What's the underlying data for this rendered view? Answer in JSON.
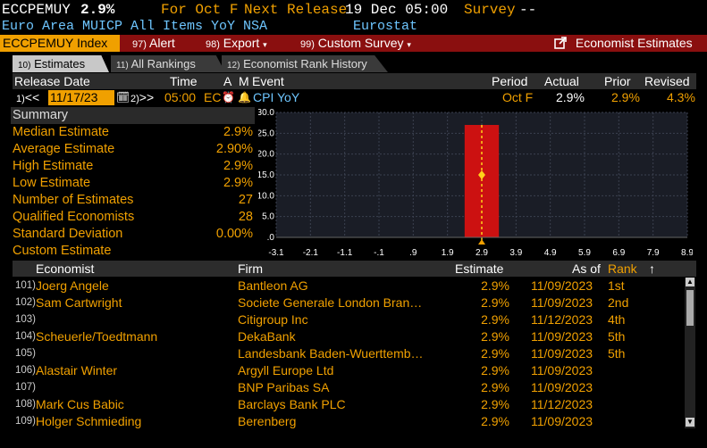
{
  "header": {
    "ticker": "ECCPEMUY",
    "value": "2.9%",
    "for_text": "For Oct F",
    "next_release_label": "Next Release",
    "next_release": "19 Dec 05:00",
    "survey_label": "Survey",
    "survey_value": "--",
    "description": "Euro Area MUICP All Items YoY NSA",
    "source": "Eurostat"
  },
  "toolbar": {
    "ticker_label": "ECCPEMUY Index",
    "alert_num": "97)",
    "alert_label": "Alert",
    "export_num": "98)",
    "export_label": "Export",
    "custom_num": "99)",
    "custom_label": "Custom Survey",
    "economist_label": "Economist Estimates"
  },
  "tabs": [
    {
      "num": "10)",
      "label": "Estimates"
    },
    {
      "num": "11)",
      "label": "All Rankings"
    },
    {
      "num": "12)",
      "label": "Economist Rank History"
    }
  ],
  "columns": {
    "release_date": "Release Date",
    "time": "Time",
    "a": "A",
    "m": "M",
    "event": "Event",
    "period": "Period",
    "actual": "Actual",
    "prior": "Prior",
    "revised": "Revised"
  },
  "release_row": {
    "prev_num": "1)",
    "prev_arrows": "<<",
    "date": "11/17/23",
    "next_num": "2)",
    "next_arrows": ">>",
    "time": "05:00",
    "country": "EC",
    "event": "CPI YoY",
    "period": "Oct F",
    "actual": "2.9%",
    "prior": "2.9%",
    "revised": "4.3%"
  },
  "summary": {
    "title": "Summary",
    "rows": [
      {
        "label": "Median Estimate",
        "value": "2.9%"
      },
      {
        "label": "Average Estimate",
        "value": "2.90%"
      },
      {
        "label": "High Estimate",
        "value": "2.9%"
      },
      {
        "label": "Low Estimate",
        "value": "2.9%"
      },
      {
        "label": "Number of Estimates",
        "value": "27"
      },
      {
        "label": "Qualified Economists",
        "value": "28"
      },
      {
        "label": "Standard Deviation",
        "value": "0.00%"
      },
      {
        "label": "Custom Estimate",
        "value": ""
      }
    ]
  },
  "chart_data": {
    "type": "bar",
    "x_ticks": [
      "-3.1",
      "-2.1",
      "-1.1",
      "-.1",
      ".9",
      "1.9",
      "2.9",
      "3.9",
      "4.9",
      "5.9",
      "6.9",
      "7.9",
      "8.9"
    ],
    "y_ticks": [
      "30.0",
      "25.0",
      "20.0",
      "15.0",
      "10.0",
      "5.0",
      ".0"
    ],
    "xlim": [
      -3.1,
      8.9
    ],
    "ylim": [
      0,
      30
    ],
    "bars": [
      {
        "x": 2.9,
        "count": 27
      }
    ],
    "marker": {
      "x": 2.9,
      "y": 15
    },
    "vline_x": 2.9,
    "grid": true,
    "colors": {
      "bar": "#cc1111",
      "vline": "#ffd21a",
      "background": "#1a1d26"
    }
  },
  "table": {
    "headers": {
      "economist": "Economist",
      "firm": "Firm",
      "estimate": "Estimate",
      "as_of": "As of",
      "rank": "Rank",
      "sort_arrow": "↑"
    },
    "rows": [
      {
        "num": "101)",
        "economist": "Joerg Angele",
        "firm": "Bantleon AG",
        "estimate": "2.9%",
        "as_of": "11/09/2023",
        "rank": "1st"
      },
      {
        "num": "102)",
        "economist": "Sam Cartwright",
        "firm": "Societe Generale London Bran…",
        "estimate": "2.9%",
        "as_of": "11/09/2023",
        "rank": "2nd"
      },
      {
        "num": "103)",
        "economist": "",
        "firm": "Citigroup Inc",
        "estimate": "2.9%",
        "as_of": "11/12/2023",
        "rank": "4th"
      },
      {
        "num": "104)",
        "economist": "Scheuerle/Toedtmann",
        "firm": "DekaBank",
        "estimate": "2.9%",
        "as_of": "11/09/2023",
        "rank": "5th"
      },
      {
        "num": "105)",
        "economist": "",
        "firm": "Landesbank Baden-Wuerttemb…",
        "estimate": "2.9%",
        "as_of": "11/09/2023",
        "rank": "5th"
      },
      {
        "num": "106)",
        "economist": "Alastair Winter",
        "firm": "Argyll Europe Ltd",
        "estimate": "2.9%",
        "as_of": "11/09/2023",
        "rank": ""
      },
      {
        "num": "107)",
        "economist": "",
        "firm": "BNP Paribas SA",
        "estimate": "2.9%",
        "as_of": "11/09/2023",
        "rank": ""
      },
      {
        "num": "108)",
        "economist": "Mark Cus Babic",
        "firm": "Barclays Bank PLC",
        "estimate": "2.9%",
        "as_of": "11/12/2023",
        "rank": ""
      },
      {
        "num": "109)",
        "economist": "Holger Schmieding",
        "firm": "Berenberg",
        "estimate": "2.9%",
        "as_of": "11/09/2023",
        "rank": ""
      }
    ]
  }
}
